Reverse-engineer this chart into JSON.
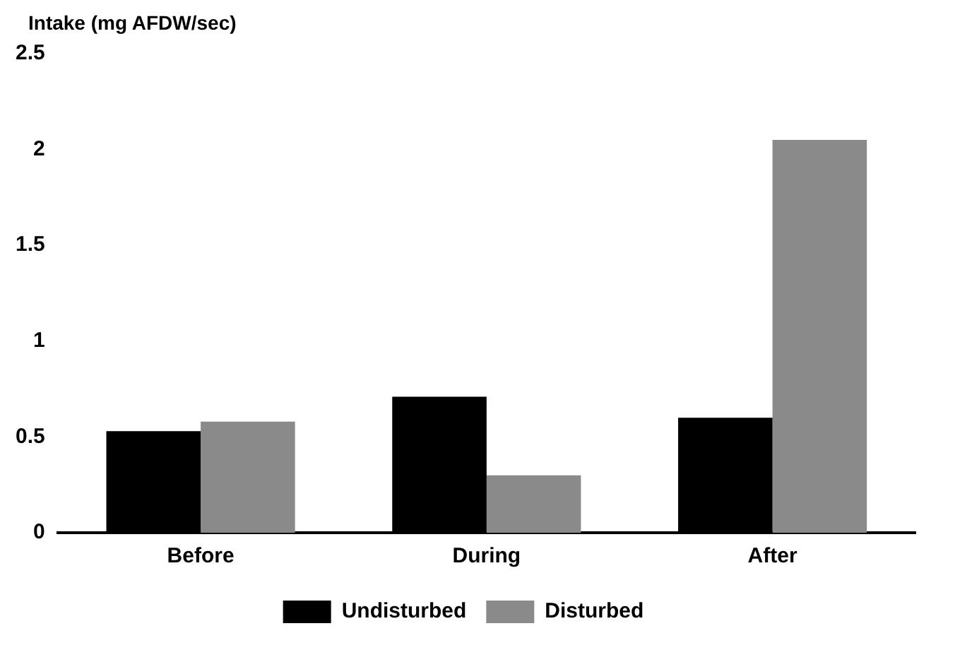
{
  "chart_data": {
    "type": "bar",
    "ylabel": "Intake (mg AFDW/sec)",
    "categories": [
      "Before",
      "During",
      "After"
    ],
    "series": [
      {
        "name": "Undisturbed",
        "color": "#000000",
        "values": [
          0.53,
          0.71,
          0.6
        ]
      },
      {
        "name": "Disturbed",
        "color": "#8a8a8a",
        "values": [
          0.58,
          0.3,
          2.05
        ]
      }
    ],
    "ylim": [
      0,
      2.5
    ],
    "yticks": [
      0,
      0.5,
      1,
      1.5,
      2,
      2.5
    ],
    "grid": false,
    "legend": "bottom"
  }
}
